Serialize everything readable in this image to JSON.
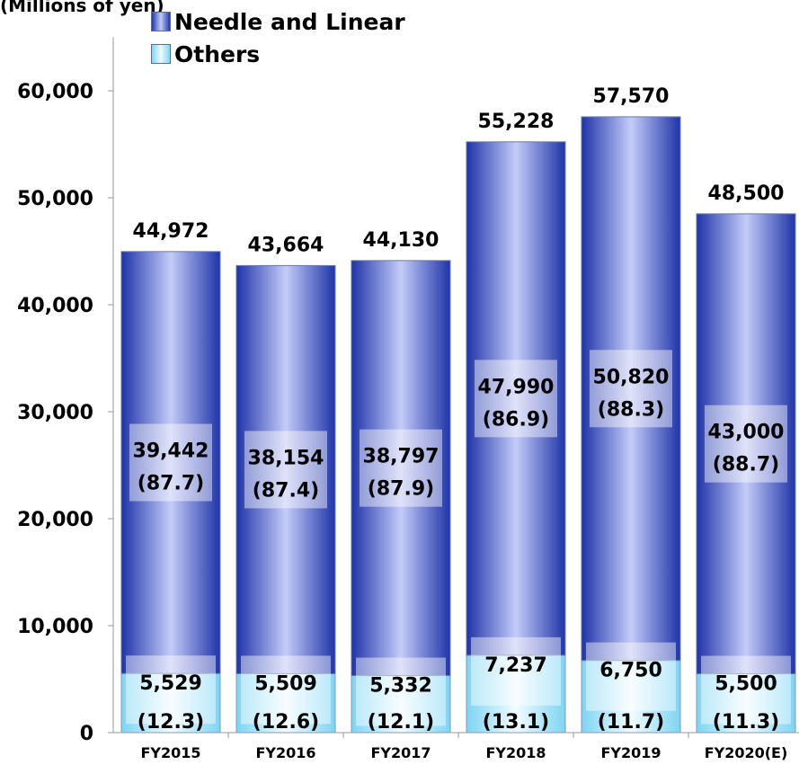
{
  "unit_label": "(Millions of yen)",
  "legend": [
    {
      "label": "Needle and Linear",
      "icon": "blue-gradient-square"
    },
    {
      "label": "Others",
      "icon": "light-blue-gradient-square"
    }
  ],
  "chart_data": {
    "type": "bar",
    "stacked": true,
    "title": "",
    "xlabel": "",
    "ylabel": "(Millions of yen)",
    "ylim": [
      0,
      65000
    ],
    "yticks": [
      0,
      10000,
      20000,
      30000,
      40000,
      50000,
      60000
    ],
    "ytick_labels": [
      "0",
      "10,000",
      "20,000",
      "30,000",
      "40,000",
      "50,000",
      "60,000"
    ],
    "grid": false,
    "legend_position": "top-left",
    "categories": [
      "FY2015",
      "FY2016",
      "FY2017",
      "FY2018",
      "FY2019",
      "FY2020(E)"
    ],
    "series": [
      {
        "name": "Others",
        "color": "#8fdcf6",
        "values": [
          5529,
          5509,
          5332,
          7237,
          6750,
          5500
        ],
        "value_labels": [
          "5,529",
          "5,509",
          "5,332",
          "7,237",
          "6,750",
          "5,500"
        ],
        "share_labels": [
          "(12.3)",
          "(12.6)",
          "(12.1)",
          "(13.1)",
          "(11.7)",
          "(11.3)"
        ]
      },
      {
        "name": "Needle and Linear",
        "color": "#2a40b8",
        "values": [
          39442,
          38154,
          38797,
          47990,
          50820,
          43000
        ],
        "value_labels": [
          "39,442",
          "38,154",
          "38,797",
          "47,990",
          "50,820",
          "43,000"
        ],
        "share_labels": [
          "(87.7)",
          "(87.4)",
          "(87.9)",
          "(86.9)",
          "(88.3)",
          "(88.7)"
        ]
      }
    ],
    "totals": [
      44972,
      43664,
      44130,
      55228,
      57570,
      48500
    ],
    "total_labels": [
      "44,972",
      "43,664",
      "44,130",
      "55,228",
      "57,570",
      "48,500"
    ]
  }
}
